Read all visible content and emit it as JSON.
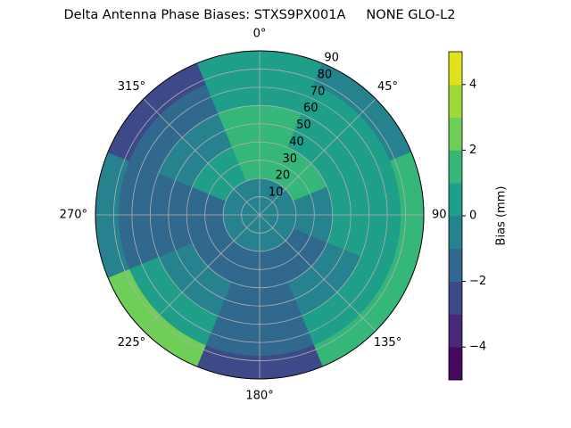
{
  "chart_data": {
    "type": "polar-contour",
    "title": "Delta Antenna Phase Biases: STXS9PX001A     NONE GLO-L2",
    "azimuth": [
      0,
      45,
      90,
      135,
      180,
      225,
      270,
      315
    ],
    "zenith": [
      10,
      30,
      50,
      70,
      85
    ],
    "values": [
      [
        -0.5,
        1.5,
        1.5,
        0.5,
        0.5
      ],
      [
        -0.5,
        1.5,
        0.5,
        0.5,
        -0.5
      ],
      [
        -0.5,
        -0.5,
        0.5,
        0.5,
        1.5
      ],
      [
        -0.5,
        -1.5,
        -0.5,
        0.5,
        1.5
      ],
      [
        -0.5,
        -1.5,
        -1.5,
        -1.5,
        -2.5
      ],
      [
        -0.5,
        -1.5,
        -0.5,
        0.5,
        2.5
      ],
      [
        -0.5,
        -1.5,
        -1.5,
        -1.5,
        -0.5
      ],
      [
        -0.5,
        0.5,
        -0.5,
        -1.5,
        -2.5
      ]
    ],
    "rlim": [
      0,
      90
    ],
    "rticks": [
      10,
      20,
      30,
      40,
      50,
      60,
      70,
      80,
      90
    ],
    "thetaticks": [
      {
        "value": 0,
        "label": "0°"
      },
      {
        "value": 45,
        "label": "45°"
      },
      {
        "value": 90,
        "label": "90"
      },
      {
        "value": 135,
        "label": "135°"
      },
      {
        "value": 180,
        "label": "180°"
      },
      {
        "value": 225,
        "label": "225°"
      },
      {
        "value": 270,
        "label": "270°"
      },
      {
        "value": 315,
        "label": "315°"
      }
    ],
    "levels": [
      -5,
      -4,
      -3,
      -2,
      -1,
      0,
      1,
      2,
      3,
      4,
      5
    ],
    "colors": [
      "#46085c",
      "#482878",
      "#3e4989",
      "#31688e",
      "#26828e",
      "#1f9e89",
      "#35b779",
      "#6ece58",
      "#9fd938",
      "#e0e31c"
    ],
    "colorbar_label": "Bias (mm)",
    "cticks": [
      {
        "value": -4,
        "label": "−4"
      },
      {
        "value": -2,
        "label": "−2"
      },
      0,
      2,
      4
    ],
    "grid": true
  }
}
